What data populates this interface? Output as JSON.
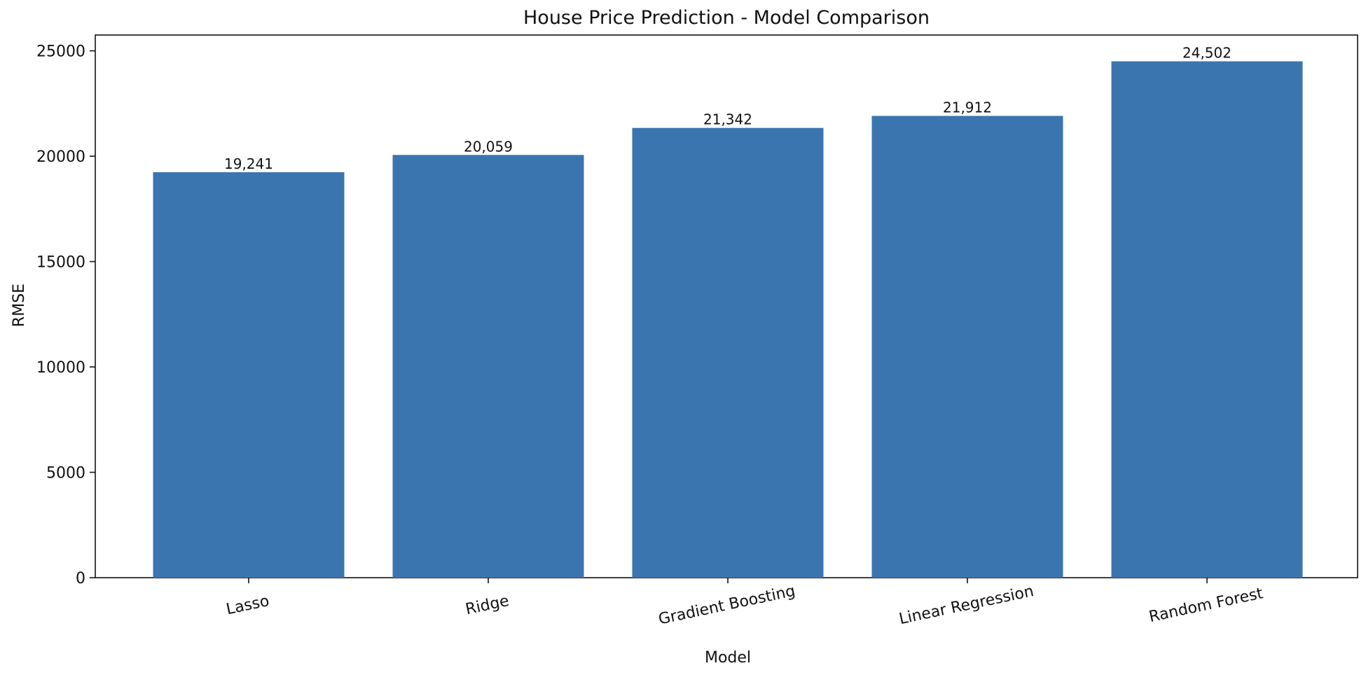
{
  "chart_data": {
    "type": "bar",
    "title": "House Price Prediction - Model Comparison",
    "xlabel": "Model",
    "ylabel": "RMSE",
    "categories": [
      "Lasso",
      "Ridge",
      "Gradient Boosting",
      "Linear Regression",
      "Random Forest"
    ],
    "values": [
      19241,
      20059,
      21342,
      21912,
      24502
    ],
    "data_labels": [
      "19,241",
      "20,059",
      "21,342",
      "21,912",
      "24,502"
    ],
    "ylim": [
      0,
      25750
    ],
    "y_ticks": [
      0,
      5000,
      10000,
      15000,
      20000,
      25000
    ],
    "y_tick_labels": [
      "0",
      "5000",
      "10000",
      "15000",
      "20000",
      "25000"
    ],
    "grid": false,
    "legend": false,
    "colors": {
      "bar": "#3a75af"
    }
  }
}
